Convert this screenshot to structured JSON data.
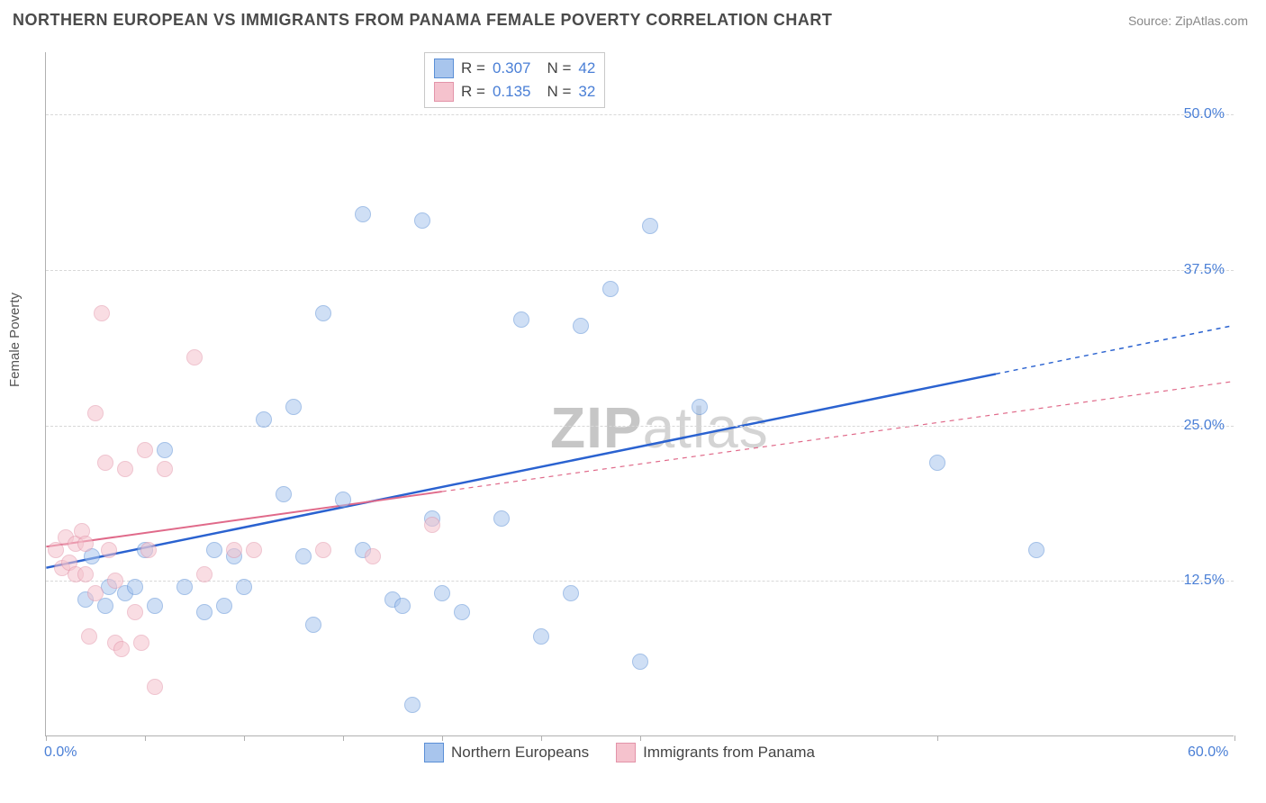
{
  "header": {
    "title": "NORTHERN EUROPEAN VS IMMIGRANTS FROM PANAMA FEMALE POVERTY CORRELATION CHART",
    "source": "Source: ZipAtlas.com"
  },
  "ylabel": "Female Poverty",
  "watermark_bold": "ZIP",
  "watermark_rest": "atlas",
  "chart": {
    "type": "scatter",
    "background_color": "#ffffff",
    "grid_color": "#d8d8d8",
    "axis_color": "#b0b0b0",
    "xlim": [
      0,
      60
    ],
    "ylim": [
      0,
      55
    ],
    "xtick_positions": [
      0,
      5,
      10,
      15,
      20,
      25,
      30,
      45,
      60
    ],
    "xtick_labels": {
      "0": "0.0%",
      "60": "60.0%"
    },
    "ytick_positions": [
      12.5,
      25.0,
      37.5,
      50.0
    ],
    "ytick_labels": [
      "12.5%",
      "25.0%",
      "37.5%",
      "50.0%"
    ],
    "marker_radius": 9,
    "marker_opacity": 0.55,
    "series": [
      {
        "name": "Northern Europeans",
        "color_fill": "#a8c5ed",
        "color_stroke": "#5b8fd6",
        "R": "0.307",
        "N": "42",
        "trend": {
          "x1": 0,
          "y1": 13.5,
          "x2": 60,
          "y2": 33.0,
          "solid_until_x": 48,
          "stroke": "#2a62d0",
          "width": 2.5
        },
        "points": [
          [
            2.0,
            11.0
          ],
          [
            2.3,
            14.5
          ],
          [
            3.0,
            10.5
          ],
          [
            3.2,
            12.0
          ],
          [
            4.0,
            11.5
          ],
          [
            4.5,
            12.0
          ],
          [
            5.0,
            15.0
          ],
          [
            5.5,
            10.5
          ],
          [
            6.0,
            23.0
          ],
          [
            7.0,
            12.0
          ],
          [
            8.0,
            10.0
          ],
          [
            8.5,
            15.0
          ],
          [
            9.0,
            10.5
          ],
          [
            9.5,
            14.5
          ],
          [
            10.0,
            12.0
          ],
          [
            11.0,
            25.5
          ],
          [
            12.0,
            19.5
          ],
          [
            12.5,
            26.5
          ],
          [
            13.0,
            14.5
          ],
          [
            13.5,
            9.0
          ],
          [
            14.0,
            34.0
          ],
          [
            15.0,
            19.0
          ],
          [
            16.0,
            15.0
          ],
          [
            16.0,
            42.0
          ],
          [
            17.5,
            11.0
          ],
          [
            18.0,
            10.5
          ],
          [
            18.5,
            2.5
          ],
          [
            19.0,
            41.5
          ],
          [
            19.5,
            17.5
          ],
          [
            20.0,
            11.5
          ],
          [
            21.0,
            10.0
          ],
          [
            23.0,
            17.5
          ],
          [
            24.0,
            33.5
          ],
          [
            25.0,
            8.0
          ],
          [
            26.5,
            11.5
          ],
          [
            27.0,
            33.0
          ],
          [
            28.5,
            36.0
          ],
          [
            30.0,
            6.0
          ],
          [
            30.5,
            41.0
          ],
          [
            33.0,
            26.5
          ],
          [
            45.0,
            22.0
          ],
          [
            50.0,
            15.0
          ]
        ]
      },
      {
        "name": "Immigrants from Panama",
        "color_fill": "#f5c2cd",
        "color_stroke": "#e394a9",
        "R": "0.135",
        "N": "32",
        "trend": {
          "x1": 0,
          "y1": 15.2,
          "x2": 60,
          "y2": 28.5,
          "solid_until_x": 20,
          "stroke": "#e06a8a",
          "width": 2
        },
        "points": [
          [
            0.5,
            15.0
          ],
          [
            0.8,
            13.5
          ],
          [
            1.0,
            16.0
          ],
          [
            1.2,
            14.0
          ],
          [
            1.5,
            15.5
          ],
          [
            1.5,
            13.0
          ],
          [
            1.8,
            16.5
          ],
          [
            2.0,
            15.5
          ],
          [
            2.0,
            13.0
          ],
          [
            2.2,
            8.0
          ],
          [
            2.5,
            26.0
          ],
          [
            2.5,
            11.5
          ],
          [
            2.8,
            34.0
          ],
          [
            3.0,
            22.0
          ],
          [
            3.2,
            15.0
          ],
          [
            3.5,
            7.5
          ],
          [
            3.5,
            12.5
          ],
          [
            3.8,
            7.0
          ],
          [
            4.0,
            21.5
          ],
          [
            4.5,
            10.0
          ],
          [
            4.8,
            7.5
          ],
          [
            5.0,
            23.0
          ],
          [
            5.2,
            15.0
          ],
          [
            5.5,
            4.0
          ],
          [
            6.0,
            21.5
          ],
          [
            7.5,
            30.5
          ],
          [
            8.0,
            13.0
          ],
          [
            9.5,
            15.0
          ],
          [
            10.5,
            15.0
          ],
          [
            14.0,
            15.0
          ],
          [
            16.5,
            14.5
          ],
          [
            19.5,
            17.0
          ]
        ]
      }
    ]
  },
  "bottom_legend": [
    {
      "label": "Northern Europeans",
      "fill": "#a8c5ed",
      "stroke": "#5b8fd6"
    },
    {
      "label": "Immigrants from Panama",
      "fill": "#f5c2cd",
      "stroke": "#e394a9"
    }
  ]
}
